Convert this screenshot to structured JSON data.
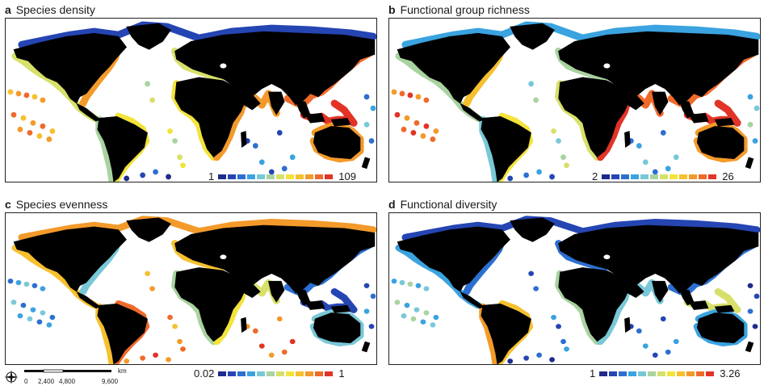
{
  "panels": [
    {
      "id": "a",
      "letter": "a",
      "title": "Species density",
      "legend_min": "1",
      "legend_max": "109",
      "theme": "density"
    },
    {
      "id": "b",
      "letter": "b",
      "title": "Functional group richness",
      "legend_min": "2",
      "legend_max": "26",
      "theme": "richness"
    },
    {
      "id": "c",
      "letter": "c",
      "title": "Species evenness",
      "legend_min": "0.02",
      "legend_max": "1",
      "theme": "evenness"
    },
    {
      "id": "d",
      "letter": "d",
      "title": "Functional diversity",
      "legend_min": "1",
      "legend_max": "3.26",
      "theme": "diversity"
    }
  ],
  "legend_colors": [
    "#1f2a8a",
    "#2545b3",
    "#2d6fd0",
    "#3aa3e0",
    "#79c8d8",
    "#a9d3a0",
    "#d7e06a",
    "#f3e33a",
    "#f6c02e",
    "#f39a2a",
    "#ef6a2a",
    "#e23327"
  ],
  "land_color": "#000000",
  "scale_bar": {
    "unit": "km",
    "ticks": [
      "0",
      "2,400",
      "4,800",
      "9,600"
    ]
  },
  "compass_icon": "compass-rose-icon"
}
